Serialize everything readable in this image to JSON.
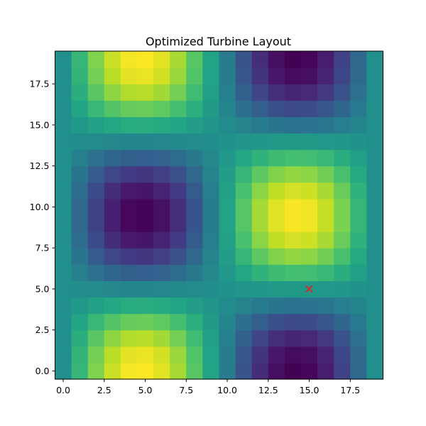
{
  "chart_data": {
    "type": "heatmap",
    "title": "Optimized Turbine Layout",
    "xlabel": "",
    "ylabel": "",
    "x_ticks": [
      "0.0",
      "2.5",
      "5.0",
      "7.5",
      "10.0",
      "12.5",
      "15.0",
      "17.5"
    ],
    "y_ticks": [
      "0.0",
      "2.5",
      "5.0",
      "7.5",
      "10.0",
      "12.5",
      "15.0",
      "17.5"
    ],
    "x_tick_values": [
      0,
      2.5,
      5,
      7.5,
      10,
      12.5,
      15,
      17.5
    ],
    "y_tick_values": [
      0,
      2.5,
      5,
      7.5,
      10,
      12.5,
      15,
      17.5
    ],
    "xlim": [
      -0.5,
      19.5
    ],
    "ylim": [
      -0.5,
      19.5
    ],
    "grid_shape": [
      20,
      20
    ],
    "cell_x": [
      0,
      1,
      2,
      3,
      4,
      5,
      6,
      7,
      8,
      9,
      10,
      11,
      12,
      13,
      14,
      15,
      16,
      17,
      18,
      19
    ],
    "cell_y": [
      0,
      1,
      2,
      3,
      4,
      5,
      6,
      7,
      8,
      9,
      10,
      11,
      12,
      13,
      14,
      15,
      16,
      17,
      18,
      19
    ],
    "field": "sin(pi*x/9.5)*cos(pi*y/9.5)",
    "value_range": [
      -1,
      1
    ],
    "colormap": "viridis",
    "grid": false,
    "marker": {
      "x": 15,
      "y": 5,
      "symbol": "x",
      "color": "#d62728"
    }
  }
}
